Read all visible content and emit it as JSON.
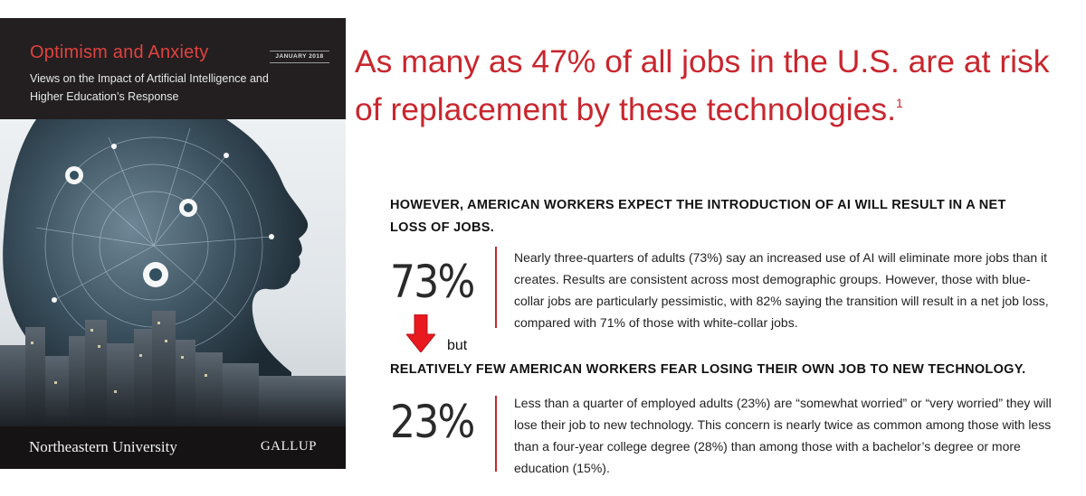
{
  "cover": {
    "title": "Optimism and Anxiety",
    "subtitle": "Views on the Impact of Artificial Intelligence and Higher Education’s Response",
    "date": "JANUARY 2018",
    "university": "Northeastern University",
    "publisher": "GALLUP"
  },
  "headline": {
    "text": "As many as 47% of all jobs in the U.S. are at risk of replacement by these technologies.",
    "footnote": "1"
  },
  "section1": {
    "heading": "HOWEVER, AMERICAN WORKERS EXPECT THE INTRODUCTION OF AI WILL RESULT IN A NET LOSS OF JOBS.",
    "stat": "73%",
    "text": "Nearly three-quarters of adults (73%) say an increased use of AI will eliminate more jobs than it creates. Results are consistent across most demographic groups. However, those with blue-collar jobs are particularly pessimistic, with 82% saying the transition will result in a net job loss, compared with 71% of those with white-collar jobs."
  },
  "connector": {
    "label": "but",
    "arrow_icon": "down-arrow-icon",
    "arrow_color": "#e8191f"
  },
  "section2": {
    "heading": "RELATIVELY FEW AMERICAN WORKERS FEAR LOSING THEIR OWN JOB TO NEW TECHNOLOGY.",
    "stat": "23%",
    "text": "Less than a quarter of employed adults (23%) are “somewhat worried” or “very worried” they will lose their job to new technology. This concern is nearly twice as common among those with less than a four-year college degree (28%) than among those with a bachelor’s degree or more education (15%)."
  },
  "colors": {
    "accent_red": "#c9262e",
    "cover_background": "#231f20"
  }
}
